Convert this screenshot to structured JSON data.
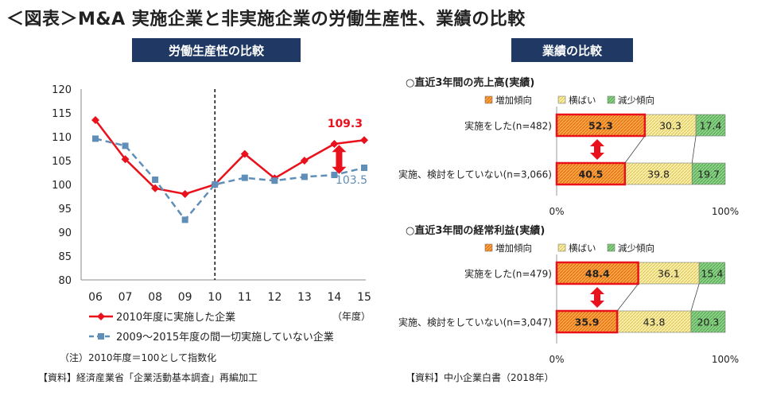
{
  "page": {
    "title": "＜図表＞M&A 実施企業と非実施企業の労働生産性、業績の比較",
    "left_header": "労働生産性の比較",
    "right_header": "業績の比較",
    "note": "（注）2010年度＝100として指数化",
    "left_source": "【資料】経済産業省「企業活動基本調査」再編加工",
    "right_source": "【資料】中小企業白書（2018年）"
  },
  "chart_data": [
    {
      "type": "line",
      "x": [
        "06",
        "07",
        "08",
        "09",
        "10",
        "11",
        "12",
        "13",
        "14",
        "15"
      ],
      "xunit": "（年度）",
      "ylim": [
        80,
        120
      ],
      "yticks": [
        80,
        85,
        90,
        95,
        100,
        105,
        110,
        115,
        120
      ],
      "series": [
        {
          "name": "2010年度に実施した企業",
          "values": [
            113.5,
            105.3,
            99.2,
            98.0,
            100.0,
            106.4,
            101.3,
            105.0,
            108.5,
            109.3
          ],
          "color": "#e8111c",
          "style": "solid",
          "marker": "diamond"
        },
        {
          "name": "2009～2015年度の間一切実施していない企業",
          "values": [
            109.6,
            108.1,
            101.0,
            92.6,
            100.0,
            101.4,
            100.8,
            101.6,
            102.0,
            103.5
          ],
          "color": "#5f8eb8",
          "style": "dashed",
          "marker": "square"
        }
      ],
      "end_labels": [
        "109.3",
        "103.5"
      ],
      "annotation": "2010 vertical dashed line"
    },
    {
      "type": "bar",
      "stacked": true,
      "title": "○直近3年間の売上高(実績)",
      "legend": [
        "増加傾向",
        "横ばい",
        "減少傾向"
      ],
      "categories": [
        "実施をした(n=482)",
        "実施、検討をしていない(n=3,066)"
      ],
      "series": [
        {
          "name": "増加傾向",
          "values": [
            52.3,
            40.5
          ],
          "color": "#f4a63a"
        },
        {
          "name": "横ばい",
          "values": [
            30.3,
            39.8
          ],
          "color": "#f5e79a"
        },
        {
          "name": "減少傾向",
          "values": [
            17.4,
            19.7
          ],
          "color": "#7cc46e"
        }
      ],
      "axis_labels": [
        "0%",
        "100%"
      ]
    },
    {
      "type": "bar",
      "stacked": true,
      "title": "○直近3年間の経常利益(実績)",
      "legend": [
        "増加傾向",
        "横ばい",
        "減少傾向"
      ],
      "categories": [
        "実施をした(n=479)",
        "実施、検討をしていない(n=3,047)"
      ],
      "series": [
        {
          "name": "増加傾向",
          "values": [
            48.4,
            35.9
          ],
          "color": "#f4a63a"
        },
        {
          "name": "横ばい",
          "values": [
            36.1,
            43.8
          ],
          "color": "#f5e79a"
        },
        {
          "name": "減少傾向",
          "values": [
            15.4,
            20.3
          ],
          "color": "#7cc46e"
        }
      ],
      "axis_labels": [
        "0%",
        "100%"
      ]
    }
  ]
}
